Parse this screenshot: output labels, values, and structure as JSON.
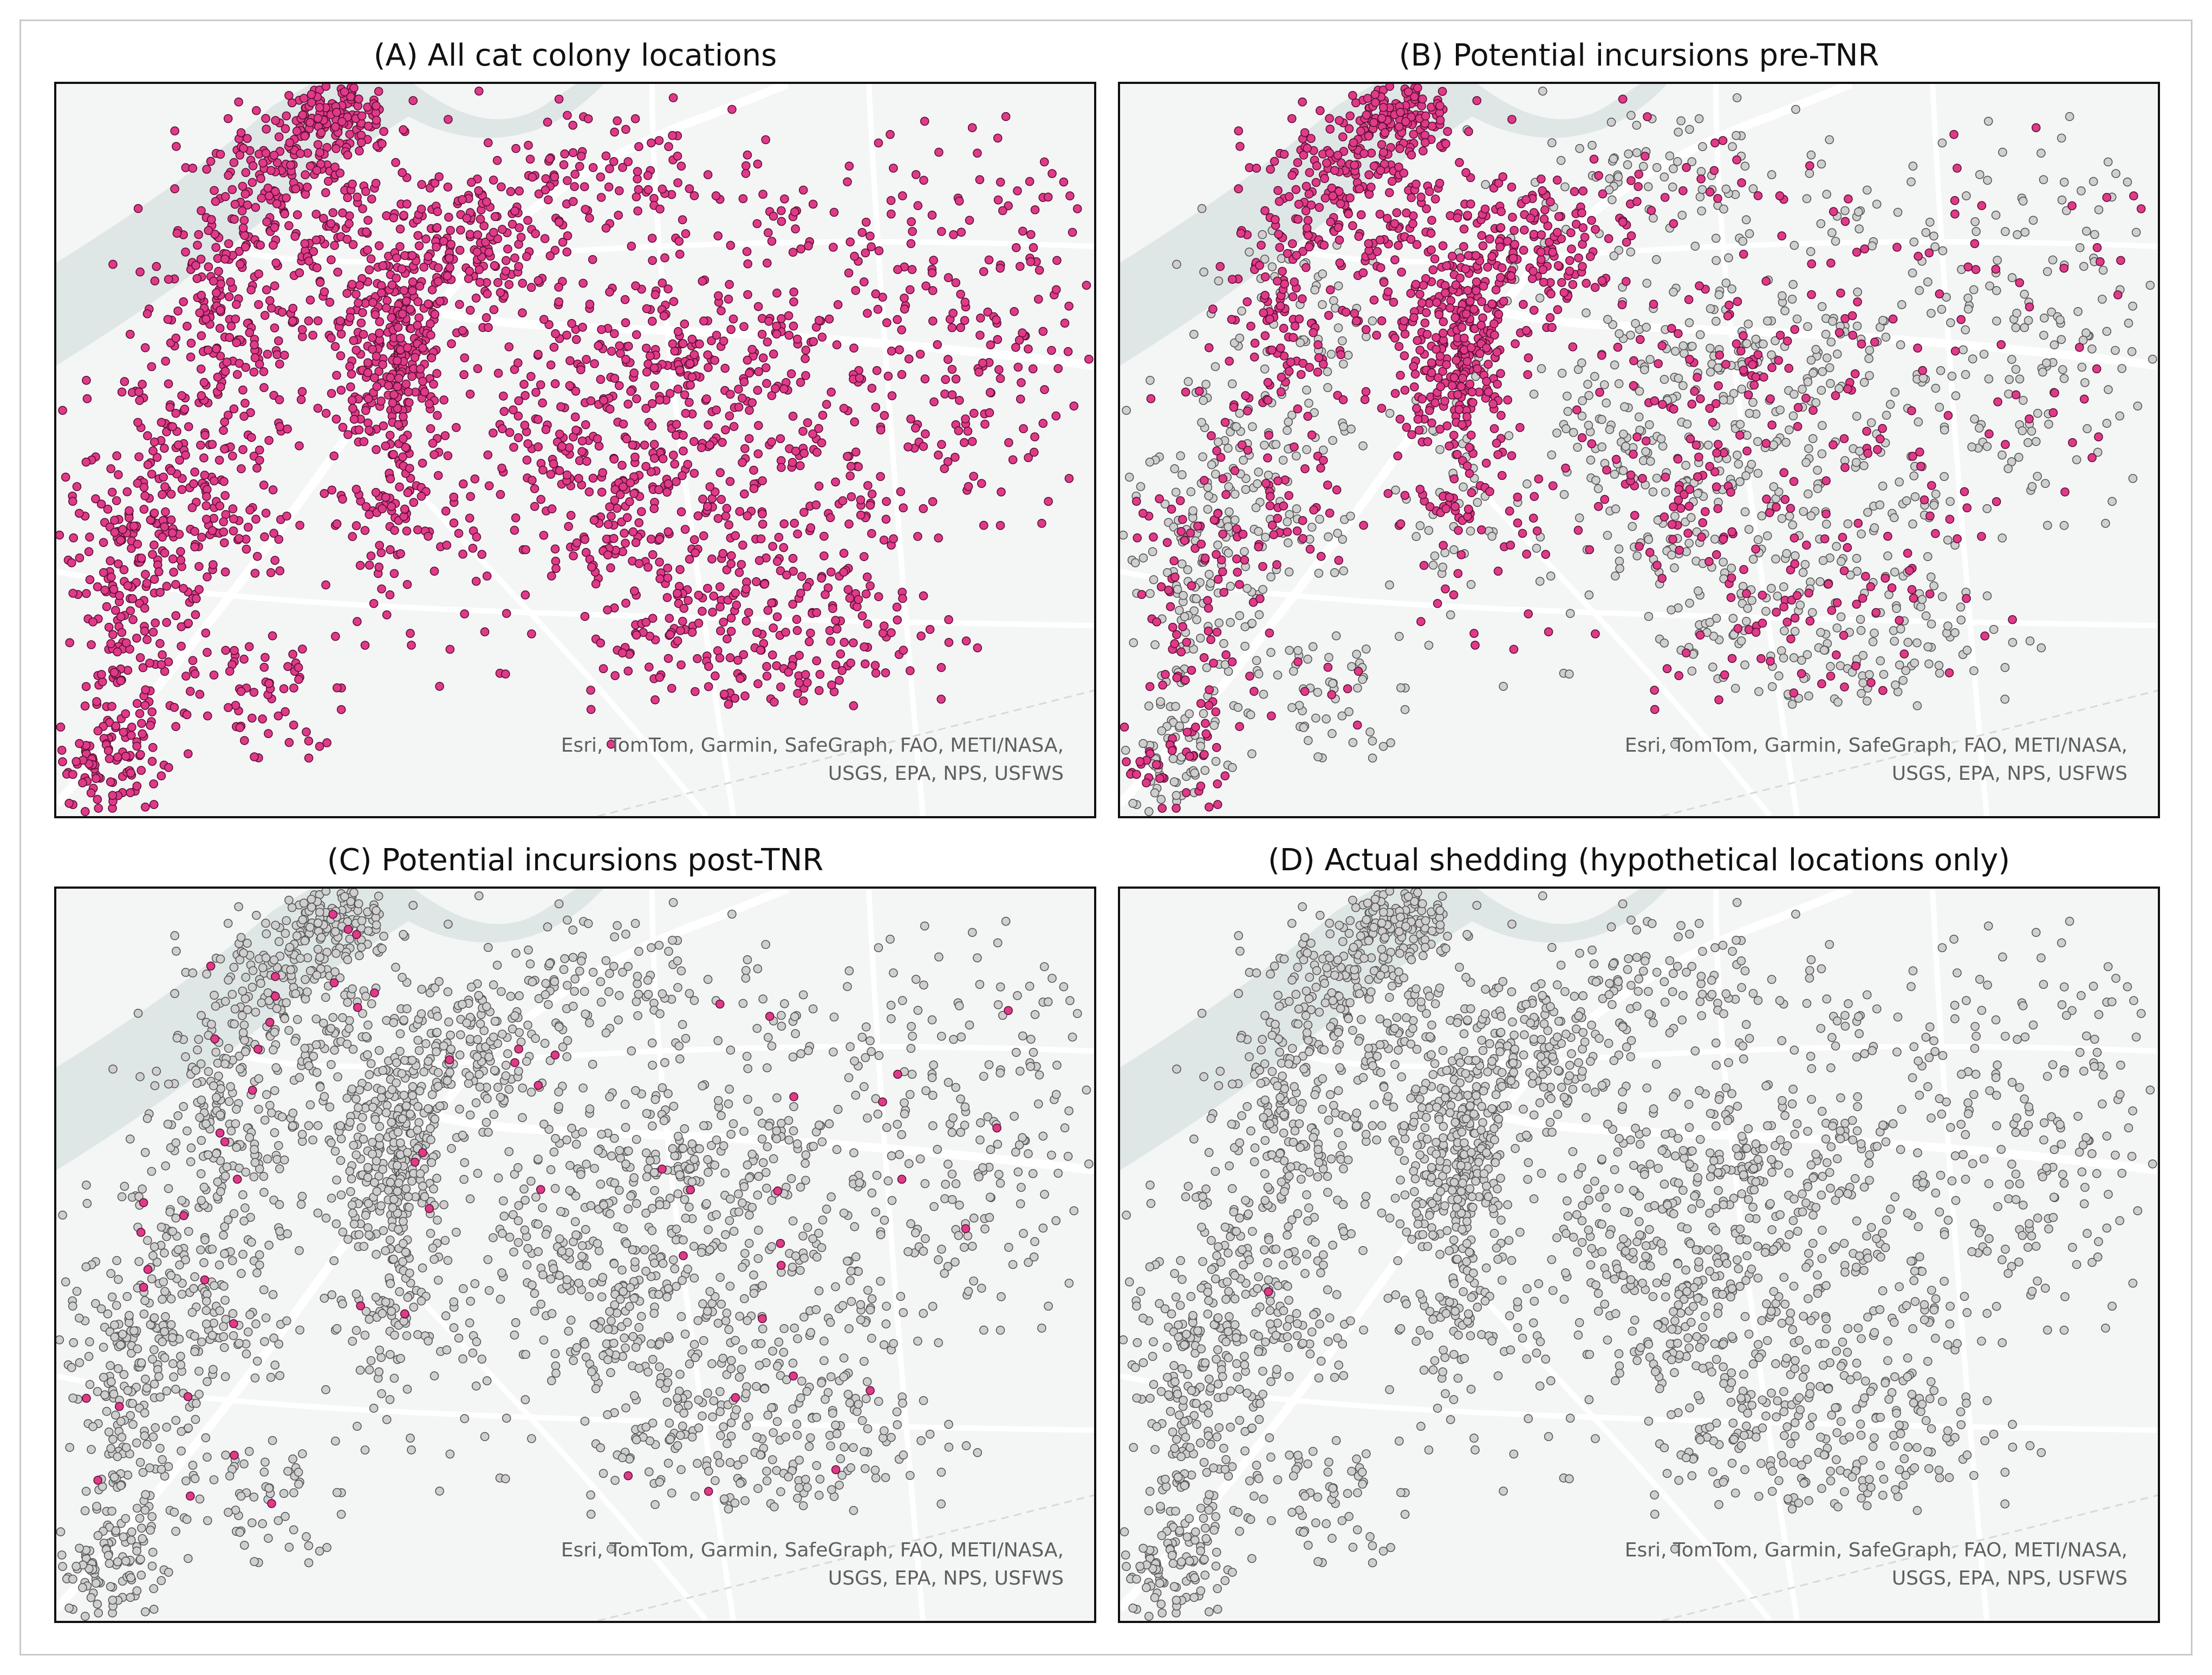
{
  "panels": [
    {
      "id": "A",
      "title": "(A) All cat colony locations",
      "highlight": "all",
      "attribution_line1": "Esri, TomTom, Garmin, SafeGraph, FAO, METI/NASA,",
      "attribution_line2": "USGS, EPA, NPS, USFWS"
    },
    {
      "id": "B",
      "title": "(B) Potential incursions pre-TNR",
      "highlight": "pre",
      "attribution_line1": "Esri, TomTom, Garmin, SafeGraph, FAO, METI/NASA,",
      "attribution_line2": "USGS, EPA, NPS, USFWS"
    },
    {
      "id": "C",
      "title": "(C) Potential incursions post-TNR",
      "highlight": "post",
      "attribution_line1": "Esri, TomTom, Garmin, SafeGraph, FAO, METI/NASA,",
      "attribution_line2": "USGS, EPA, NPS, USFWS"
    },
    {
      "id": "D",
      "title": "(D) Actual shedding (hypothetical locations only)",
      "highlight": "actual",
      "attribution_line1": "Esri, TomTom, Garmin, SafeGraph, FAO, METI/NASA,",
      "attribution_line2": "USGS, EPA, NPS, USFWS"
    }
  ],
  "colors": {
    "highlight_fill": "#e03a8a",
    "highlight_stroke": "#5a1030",
    "normal_fill": "#cfcfcf",
    "normal_stroke": "#555555",
    "water": "#dfe6e6",
    "road": "#ffffff",
    "basemap": "#f4f5f5"
  }
}
